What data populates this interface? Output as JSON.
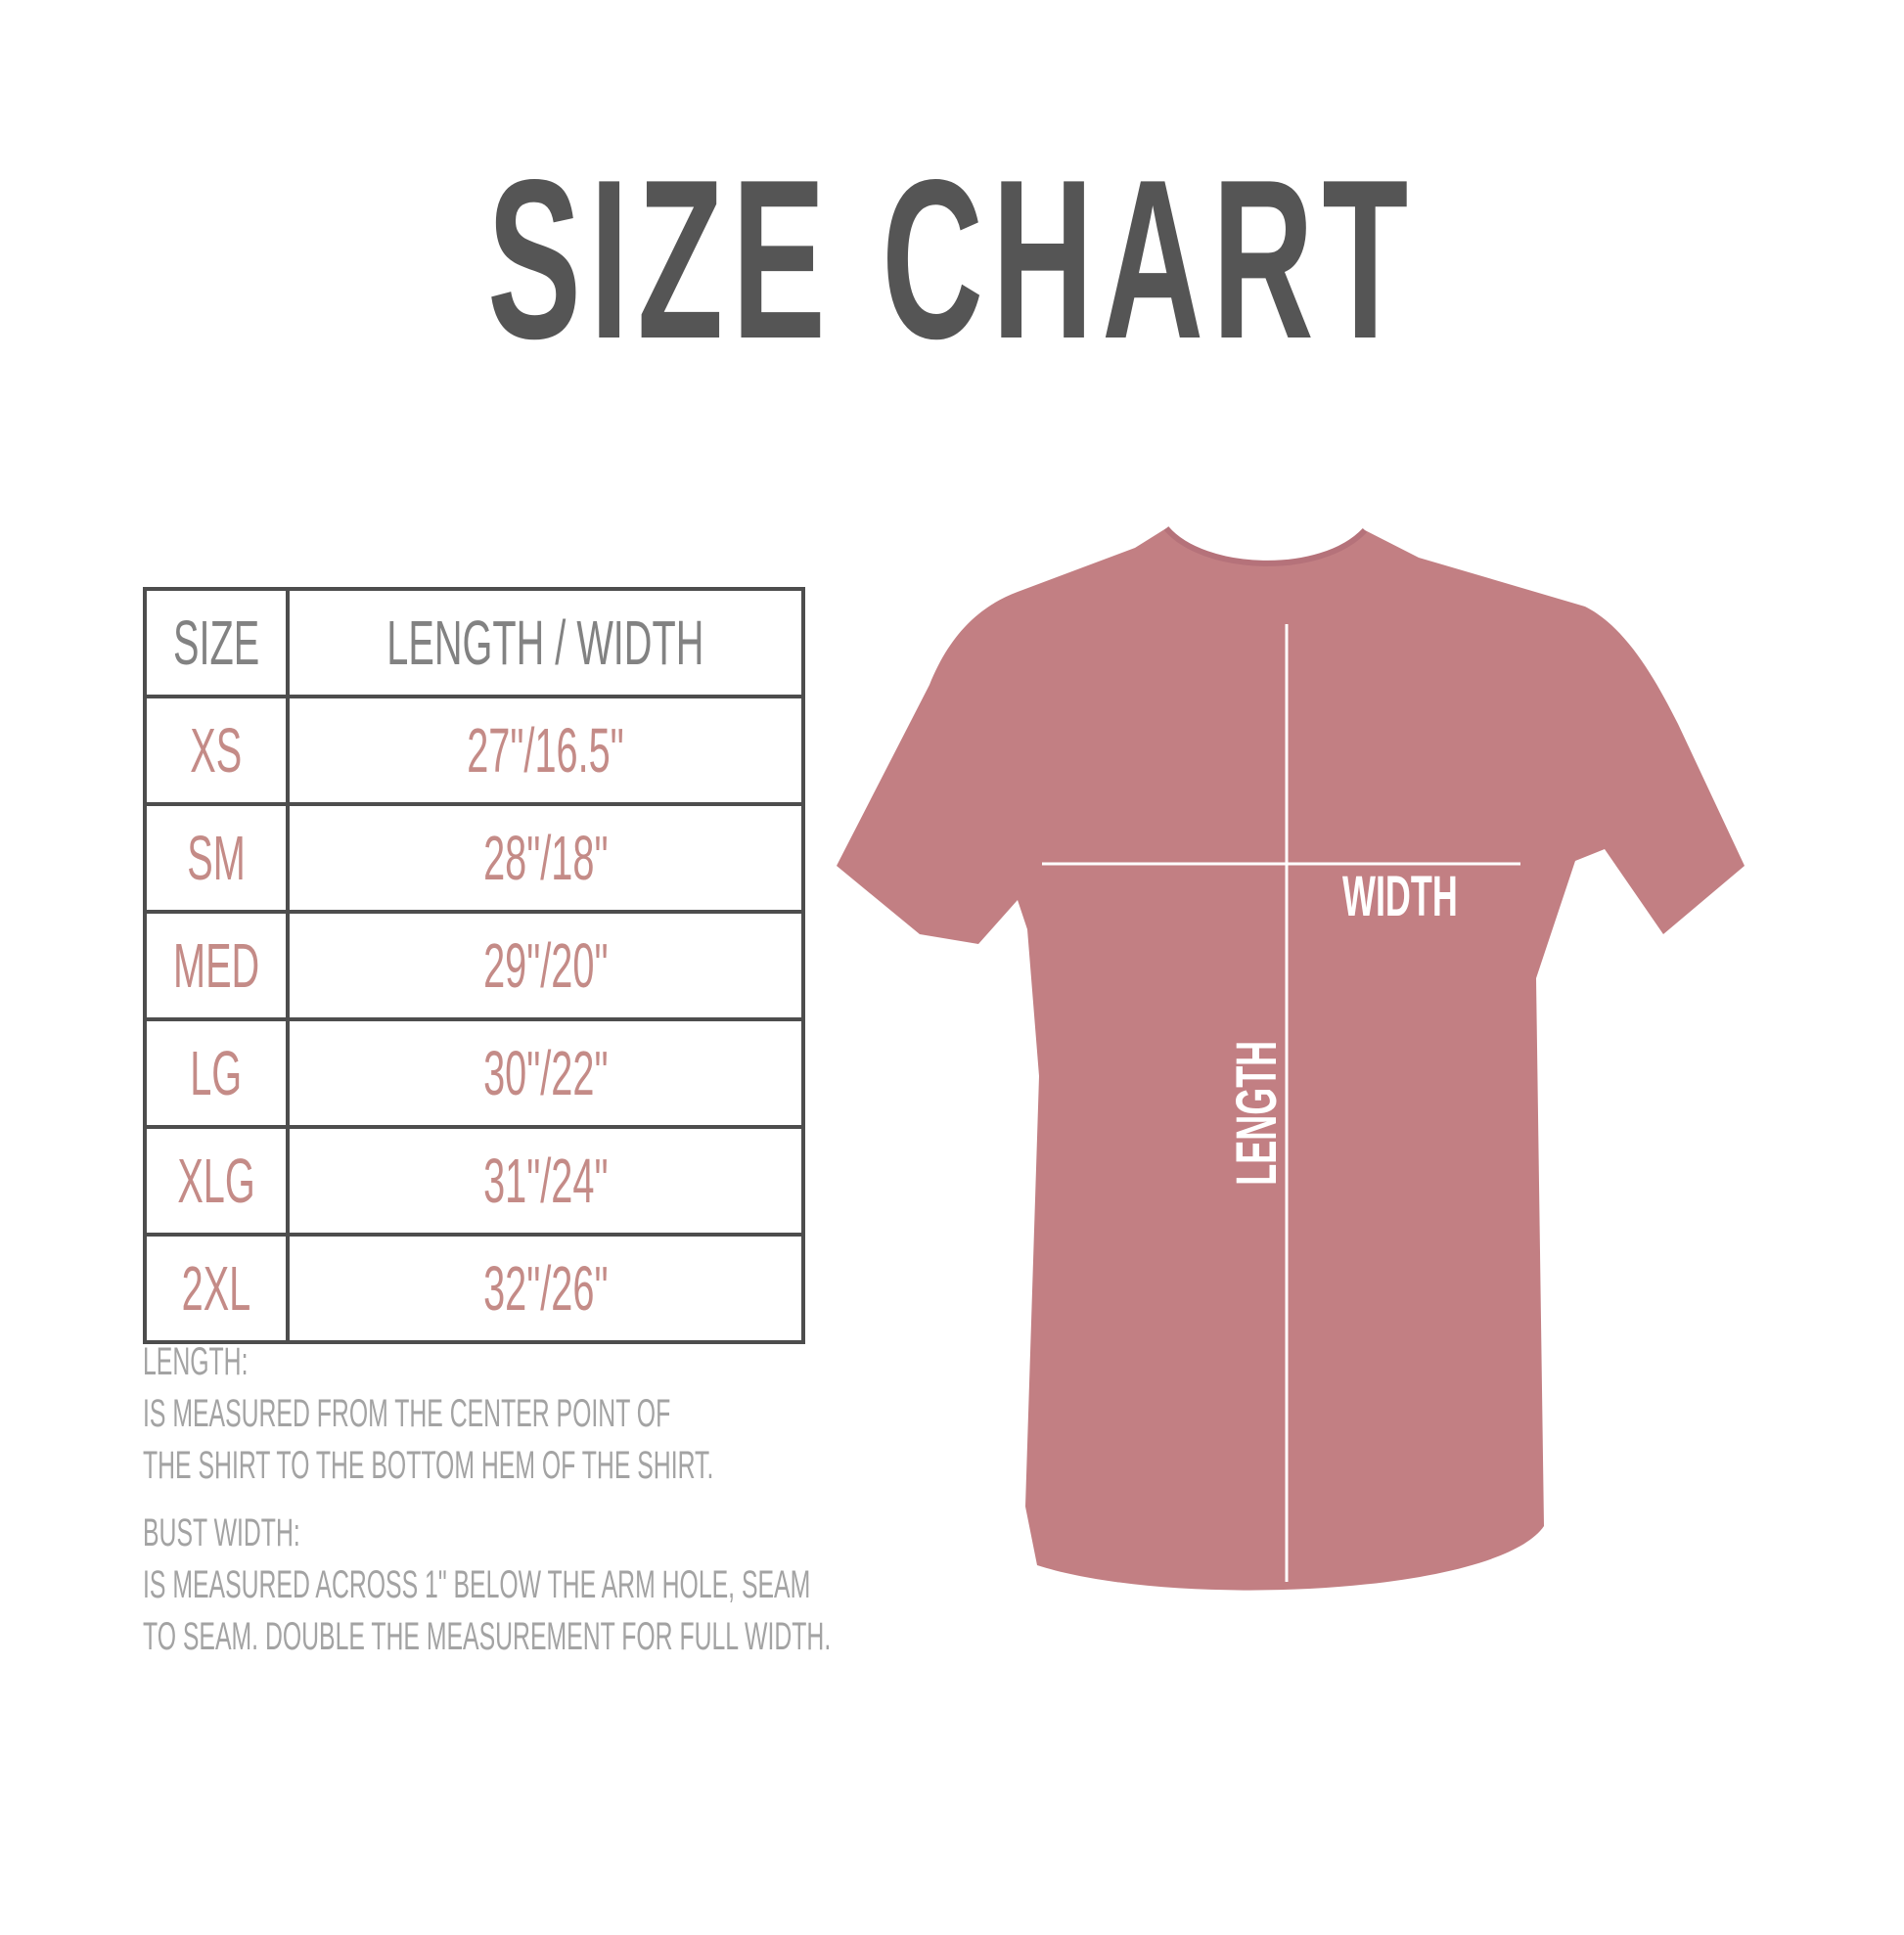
{
  "title": "SIZE CHART",
  "table": {
    "headers": [
      "SIZE",
      "LENGTH / WIDTH"
    ],
    "rows": [
      {
        "size": "XS",
        "measure": "27\"/16.5\""
      },
      {
        "size": "SM",
        "measure": "28\"/18\""
      },
      {
        "size": "MED",
        "measure": "29\"/20\""
      },
      {
        "size": "LG",
        "measure": "30\"/22\""
      },
      {
        "size": "XLG",
        "measure": "31\"/24\""
      },
      {
        "size": "2XL",
        "measure": "32\"/26\""
      }
    ]
  },
  "notes": {
    "length_title": "LENGTH:",
    "length_line1": "IS MEASURED FROM THE CENTER POINT OF",
    "length_line2": "THE SHIRT TO THE BOTTOM HEM OF THE SHIRT.",
    "width_title": "BUST WIDTH:",
    "width_line1": "IS MEASURED ACROSS  1\" BELOW THE ARM HOLE, SEAM",
    "width_line2": "TO SEAM. DOUBLE THE MEASUREMENT FOR FULL WIDTH."
  },
  "shirt": {
    "width_label": "WIDTH",
    "length_label": "LENGTH",
    "color": "#c27f83"
  },
  "colors": {
    "title": "#555555",
    "header_text": "#828282",
    "size_text": "#c48b87",
    "notes_text": "#a3a3a3"
  }
}
